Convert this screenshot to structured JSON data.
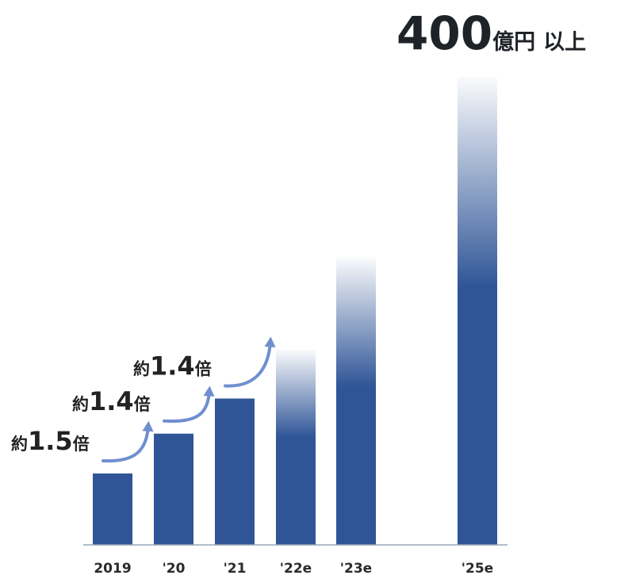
{
  "chart_data": {
    "type": "bar",
    "categories": [
      "2019",
      "'20",
      "'21",
      "'22e",
      "'23e",
      "'25e"
    ],
    "values": [
      61,
      95,
      125,
      167,
      246,
      400
    ],
    "estimated": [
      false,
      false,
      false,
      true,
      true,
      true
    ],
    "ylim": [
      0,
      420
    ],
    "grid": false,
    "legend": "none",
    "colors": {
      "bar": "#2f5597",
      "arrow": "#6f8fcf",
      "axis": "#9aa6b5"
    },
    "headline": {
      "value": "400",
      "unit": "億円",
      "suffix": "以上"
    },
    "growth_labels": [
      {
        "prefix": "約",
        "value": "1.5",
        "suffix": "倍"
      },
      {
        "prefix": "約",
        "value": "1.4",
        "suffix": "倍"
      },
      {
        "prefix": "約",
        "value": "1.4",
        "suffix": "倍"
      }
    ]
  }
}
